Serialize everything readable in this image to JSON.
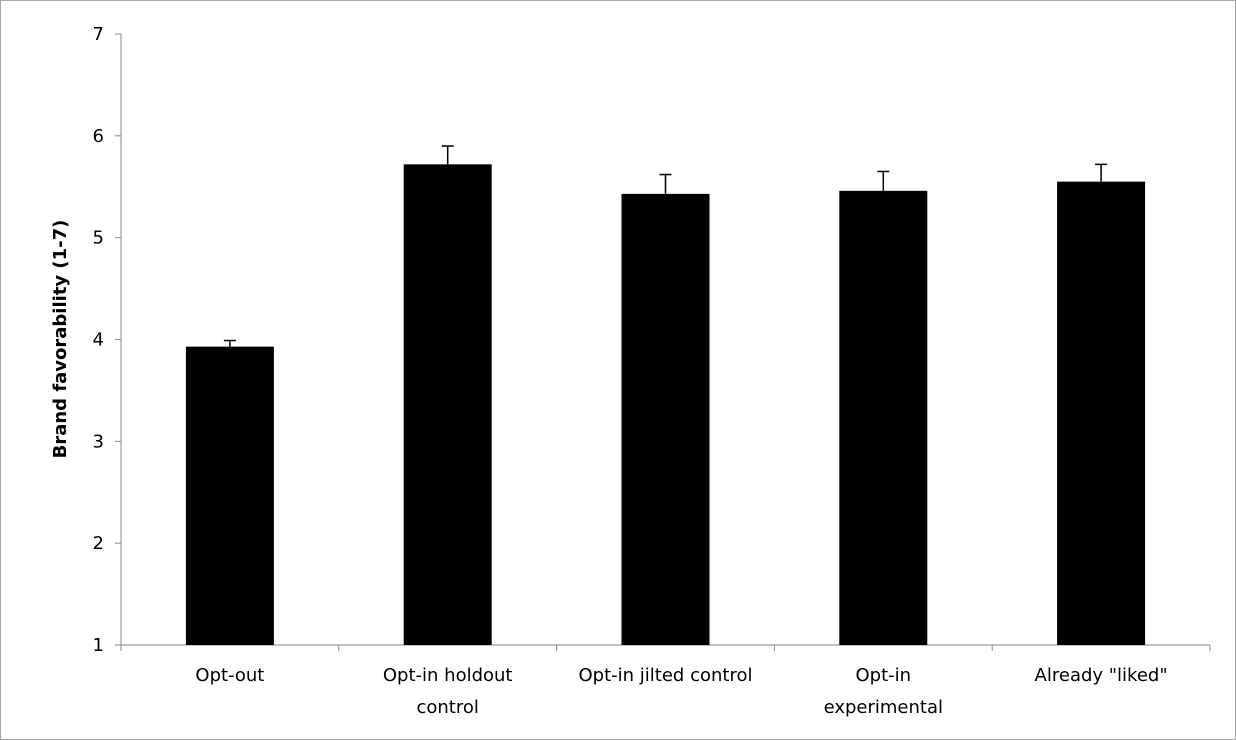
{
  "chart_data": {
    "type": "bar",
    "title": "",
    "xlabel": "",
    "ylabel": "Brand favorability (1-7)",
    "ylim": [
      1,
      7
    ],
    "yticks": [
      1,
      2,
      3,
      4,
      5,
      6,
      7
    ],
    "categories": [
      [
        "Opt-out"
      ],
      [
        "Opt-in holdout",
        "control"
      ],
      [
        "Opt-in jilted control"
      ],
      [
        "Opt-in",
        "experimental"
      ],
      [
        "Already \"liked\""
      ]
    ],
    "values": [
      3.93,
      5.72,
      5.43,
      5.46,
      5.55
    ],
    "error_upper": [
      0.06,
      0.18,
      0.19,
      0.19,
      0.17
    ],
    "grid": false,
    "legend": "none",
    "bar_color": "#000000",
    "axis_color": "#868686"
  }
}
